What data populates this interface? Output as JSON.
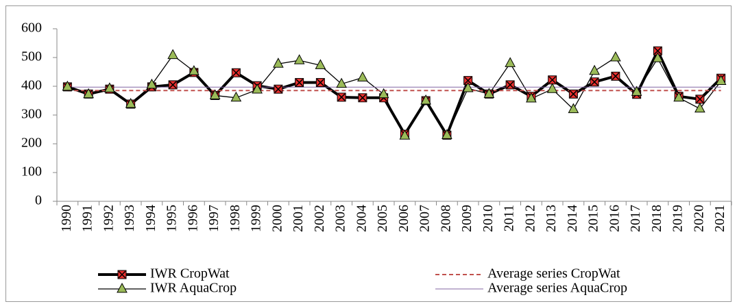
{
  "chart_data": {
    "type": "line",
    "categories": [
      "1990",
      "1991",
      "1992",
      "1993",
      "1994",
      "1995",
      "1996",
      "1997",
      "1998",
      "1999",
      "2000",
      "2001",
      "2002",
      "2003",
      "2004",
      "2005",
      "2006",
      "2007",
      "2008",
      "2009",
      "2010",
      "2011",
      "2012",
      "2013",
      "2014",
      "2015",
      "2016",
      "2017",
      "2018",
      "2019",
      "2020",
      "2021"
    ],
    "series": [
      {
        "name": "IWR CropWat",
        "color": "#000000",
        "line_width": 4,
        "dashed": false,
        "marker": "square-x",
        "marker_color": "#e8302f",
        "values": [
          398,
          373,
          390,
          338,
          398,
          405,
          448,
          368,
          447,
          402,
          390,
          413,
          413,
          362,
          360,
          360,
          233,
          350,
          230,
          420,
          373,
          405,
          365,
          422,
          373,
          415,
          435,
          372,
          523,
          365,
          355,
          428
        ]
      },
      {
        "name": "IWR AquaCrop",
        "color": "#000000",
        "line_width": 1.3,
        "dashed": false,
        "marker": "triangle",
        "marker_color": "#9bbb59",
        "values": [
          398,
          372,
          392,
          338,
          405,
          508,
          452,
          368,
          360,
          388,
          478,
          490,
          473,
          408,
          430,
          372,
          228,
          350,
          230,
          393,
          373,
          480,
          357,
          390,
          320,
          453,
          500,
          380,
          497,
          360,
          322,
          418
        ]
      },
      {
        "name": "Average series CropWat",
        "color": "#c0504d",
        "line_width": 2,
        "dashed": true,
        "marker": "none",
        "marker_color": "#c0504d",
        "values": [
          385,
          385,
          385,
          385,
          385,
          385,
          385,
          385,
          385,
          385,
          385,
          385,
          385,
          385,
          385,
          385,
          385,
          385,
          385,
          385,
          385,
          385,
          385,
          385,
          385,
          385,
          385,
          385,
          385,
          385,
          385,
          385
        ]
      },
      {
        "name": "Average series AquaCrop",
        "color": "#8064a2",
        "line_width": 1,
        "dashed": false,
        "marker": "none",
        "marker_color": "#8064a2",
        "values": [
          397,
          397,
          397,
          397,
          397,
          397,
          397,
          397,
          397,
          397,
          397,
          397,
          397,
          397,
          397,
          397,
          397,
          397,
          397,
          397,
          397,
          397,
          397,
          397,
          397,
          397,
          397,
          397,
          397,
          397,
          397,
          397
        ]
      }
    ],
    "ylim": [
      0,
      600
    ],
    "yticks": [
      0,
      100,
      200,
      300,
      400,
      500,
      600
    ],
    "grid": false
  }
}
